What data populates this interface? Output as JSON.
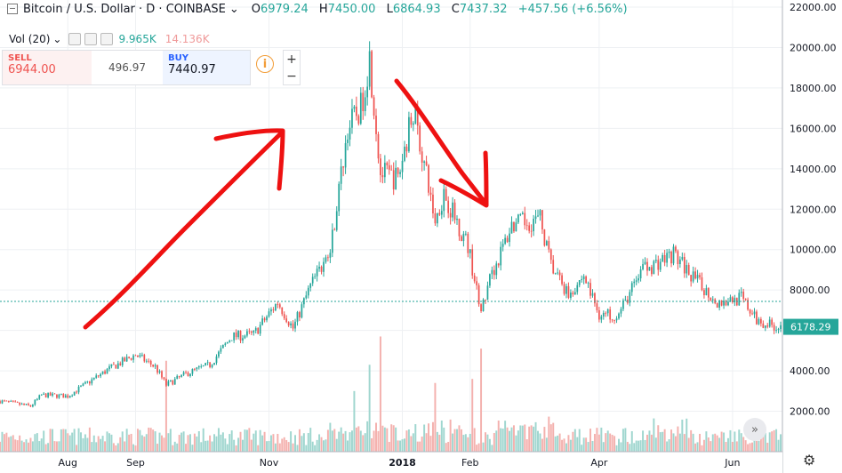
{
  "header": {
    "symbol": "Bitcoin / U.S. Dollar · D · COINBASE",
    "chevron": "⌄",
    "open_label": "O",
    "open": "6979.24",
    "high_label": "H",
    "high": "7450.00",
    "low_label": "L",
    "low": "6864.93",
    "close_label": "C",
    "close": "7437.32",
    "change": "+457.56 (+6.56%)"
  },
  "volume": {
    "label": "Vol (20)",
    "chevron": "⌄",
    "value1": "9.965K",
    "value2": "14.136K"
  },
  "trade": {
    "sell_label": "SELL",
    "sell_price": "6944.00",
    "spread": "496.97",
    "buy_label": "BUY",
    "buy_price": "7440.97",
    "info_icon": "i"
  },
  "zoom": {
    "plus": "+",
    "minus": "−"
  },
  "scroll_button": "»",
  "settings_icon": "⚙",
  "colors": {
    "up": "#26a69a",
    "down": "#ef5350",
    "vol_up": "#9fd6cf",
    "vol_down": "#f4b1ae",
    "annotation": "#ee1111",
    "grid": "#eef0f3"
  },
  "chart_data": {
    "type": "candlestick",
    "ylim": [
      0,
      22000
    ],
    "y_ticks": [
      "22000.00",
      "20000.00",
      "18000.00",
      "16000.00",
      "14000.00",
      "12000.00",
      "10000.00",
      "8000.00",
      "6000.00",
      "4000.00",
      "2000.00"
    ],
    "y_tick_values": [
      22000,
      20000,
      18000,
      16000,
      14000,
      12000,
      10000,
      8000,
      6000,
      4000,
      2000
    ],
    "x_ticks": [
      "Aug",
      "Sep",
      "Nov",
      "2018",
      "Feb",
      "Apr",
      "Jun"
    ],
    "x_tick_dates": [
      "2017-08-01",
      "2017-09-01",
      "2017-11-01",
      "2018-01-01",
      "2018-02-01",
      "2018-04-01",
      "2018-06-01"
    ],
    "x_range": [
      "2017-07-01",
      "2018-06-23"
    ],
    "last_price": "6178.29",
    "last_price_value": 6178.29,
    "dotted_level": 7437.32,
    "series": [
      {
        "date": "2017-07-01",
        "close": 2500
      },
      {
        "date": "2017-07-15",
        "close": 2250
      },
      {
        "date": "2017-07-20",
        "close": 2800
      },
      {
        "date": "2017-08-01",
        "close": 2750
      },
      {
        "date": "2017-08-10",
        "close": 3400
      },
      {
        "date": "2017-08-20",
        "close": 4100
      },
      {
        "date": "2017-09-01",
        "close": 4800
      },
      {
        "date": "2017-09-10",
        "close": 4200
      },
      {
        "date": "2017-09-15",
        "close": 3300
      },
      {
        "date": "2017-09-25",
        "close": 3900
      },
      {
        "date": "2017-10-05",
        "close": 4300
      },
      {
        "date": "2017-10-15",
        "close": 5700
      },
      {
        "date": "2017-10-25",
        "close": 5800
      },
      {
        "date": "2017-11-05",
        "close": 7400
      },
      {
        "date": "2017-11-12",
        "close": 6100
      },
      {
        "date": "2017-11-20",
        "close": 8200
      },
      {
        "date": "2017-11-29",
        "close": 9900
      },
      {
        "date": "2017-12-07",
        "close": 16000
      },
      {
        "date": "2017-12-13",
        "close": 17000
      },
      {
        "date": "2017-12-17",
        "close": 19500
      },
      {
        "date": "2017-12-22",
        "close": 13800
      },
      {
        "date": "2017-12-30",
        "close": 13500
      },
      {
        "date": "2018-01-06",
        "close": 17000
      },
      {
        "date": "2018-01-16",
        "close": 11400
      },
      {
        "date": "2018-01-20",
        "close": 12800
      },
      {
        "date": "2018-01-31",
        "close": 10200
      },
      {
        "date": "2018-02-06",
        "close": 6900
      },
      {
        "date": "2018-02-10",
        "close": 8500
      },
      {
        "date": "2018-02-20",
        "close": 11200
      },
      {
        "date": "2018-03-05",
        "close": 11500
      },
      {
        "date": "2018-03-10",
        "close": 9200
      },
      {
        "date": "2018-03-18",
        "close": 7800
      },
      {
        "date": "2018-03-25",
        "close": 8700
      },
      {
        "date": "2018-04-01",
        "close": 6800
      },
      {
        "date": "2018-04-10",
        "close": 6800
      },
      {
        "date": "2018-04-20",
        "close": 8900
      },
      {
        "date": "2018-05-05",
        "close": 9800
      },
      {
        "date": "2018-05-15",
        "close": 8500
      },
      {
        "date": "2018-05-25",
        "close": 7400
      },
      {
        "date": "2018-06-05",
        "close": 7600
      },
      {
        "date": "2018-06-12",
        "close": 6500
      },
      {
        "date": "2018-06-22",
        "close": 6178
      }
    ],
    "volume_spikes": [
      {
        "date": "2017-09-15",
        "value": 4500
      },
      {
        "date": "2017-12-10",
        "value": 3000
      },
      {
        "date": "2017-12-17",
        "value": 4300
      },
      {
        "date": "2017-12-22",
        "value": 5700
      },
      {
        "date": "2018-01-16",
        "value": 3400
      },
      {
        "date": "2018-02-06",
        "value": 5100
      },
      {
        "date": "2018-02-02",
        "value": 3600
      }
    ]
  }
}
